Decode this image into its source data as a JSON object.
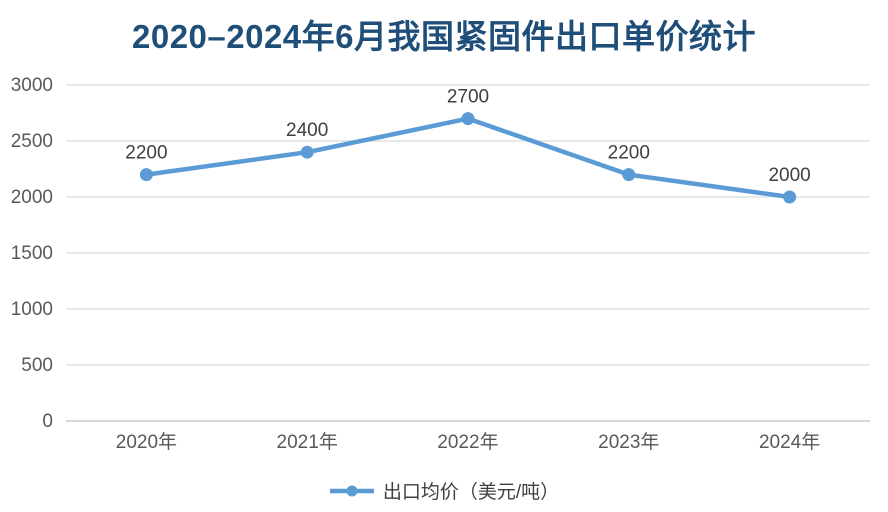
{
  "colors": {
    "background": "#FFFFFF",
    "title": "#1F4E79",
    "line": "#5B9BD5",
    "marker": "#5B9BD5",
    "grid": "#D9D9D9",
    "axis_line": "#BFBFBF",
    "tick_text": "#595959",
    "data_label_text": "#404040",
    "legend_text": "#404040"
  },
  "chart_data": {
    "type": "line",
    "title": "2020–2024年6月我国紧固件出口单价统计",
    "categories": [
      "2020年",
      "2021年",
      "2022年",
      "2023年",
      "2024年"
    ],
    "series": [
      {
        "name": "出口均价（美元/吨）",
        "values": [
          2200,
          2400,
          2700,
          2200,
          2000
        ]
      }
    ],
    "data_labels": [
      "2200",
      "2400",
      "2700",
      "2200",
      "2000"
    ],
    "xlabel": "",
    "ylabel": "",
    "ylim": [
      0,
      3000
    ],
    "yticks": [
      0,
      500,
      1000,
      1500,
      2000,
      2500,
      3000
    ],
    "grid": true,
    "legend_position": "bottom",
    "marker": "circle"
  }
}
